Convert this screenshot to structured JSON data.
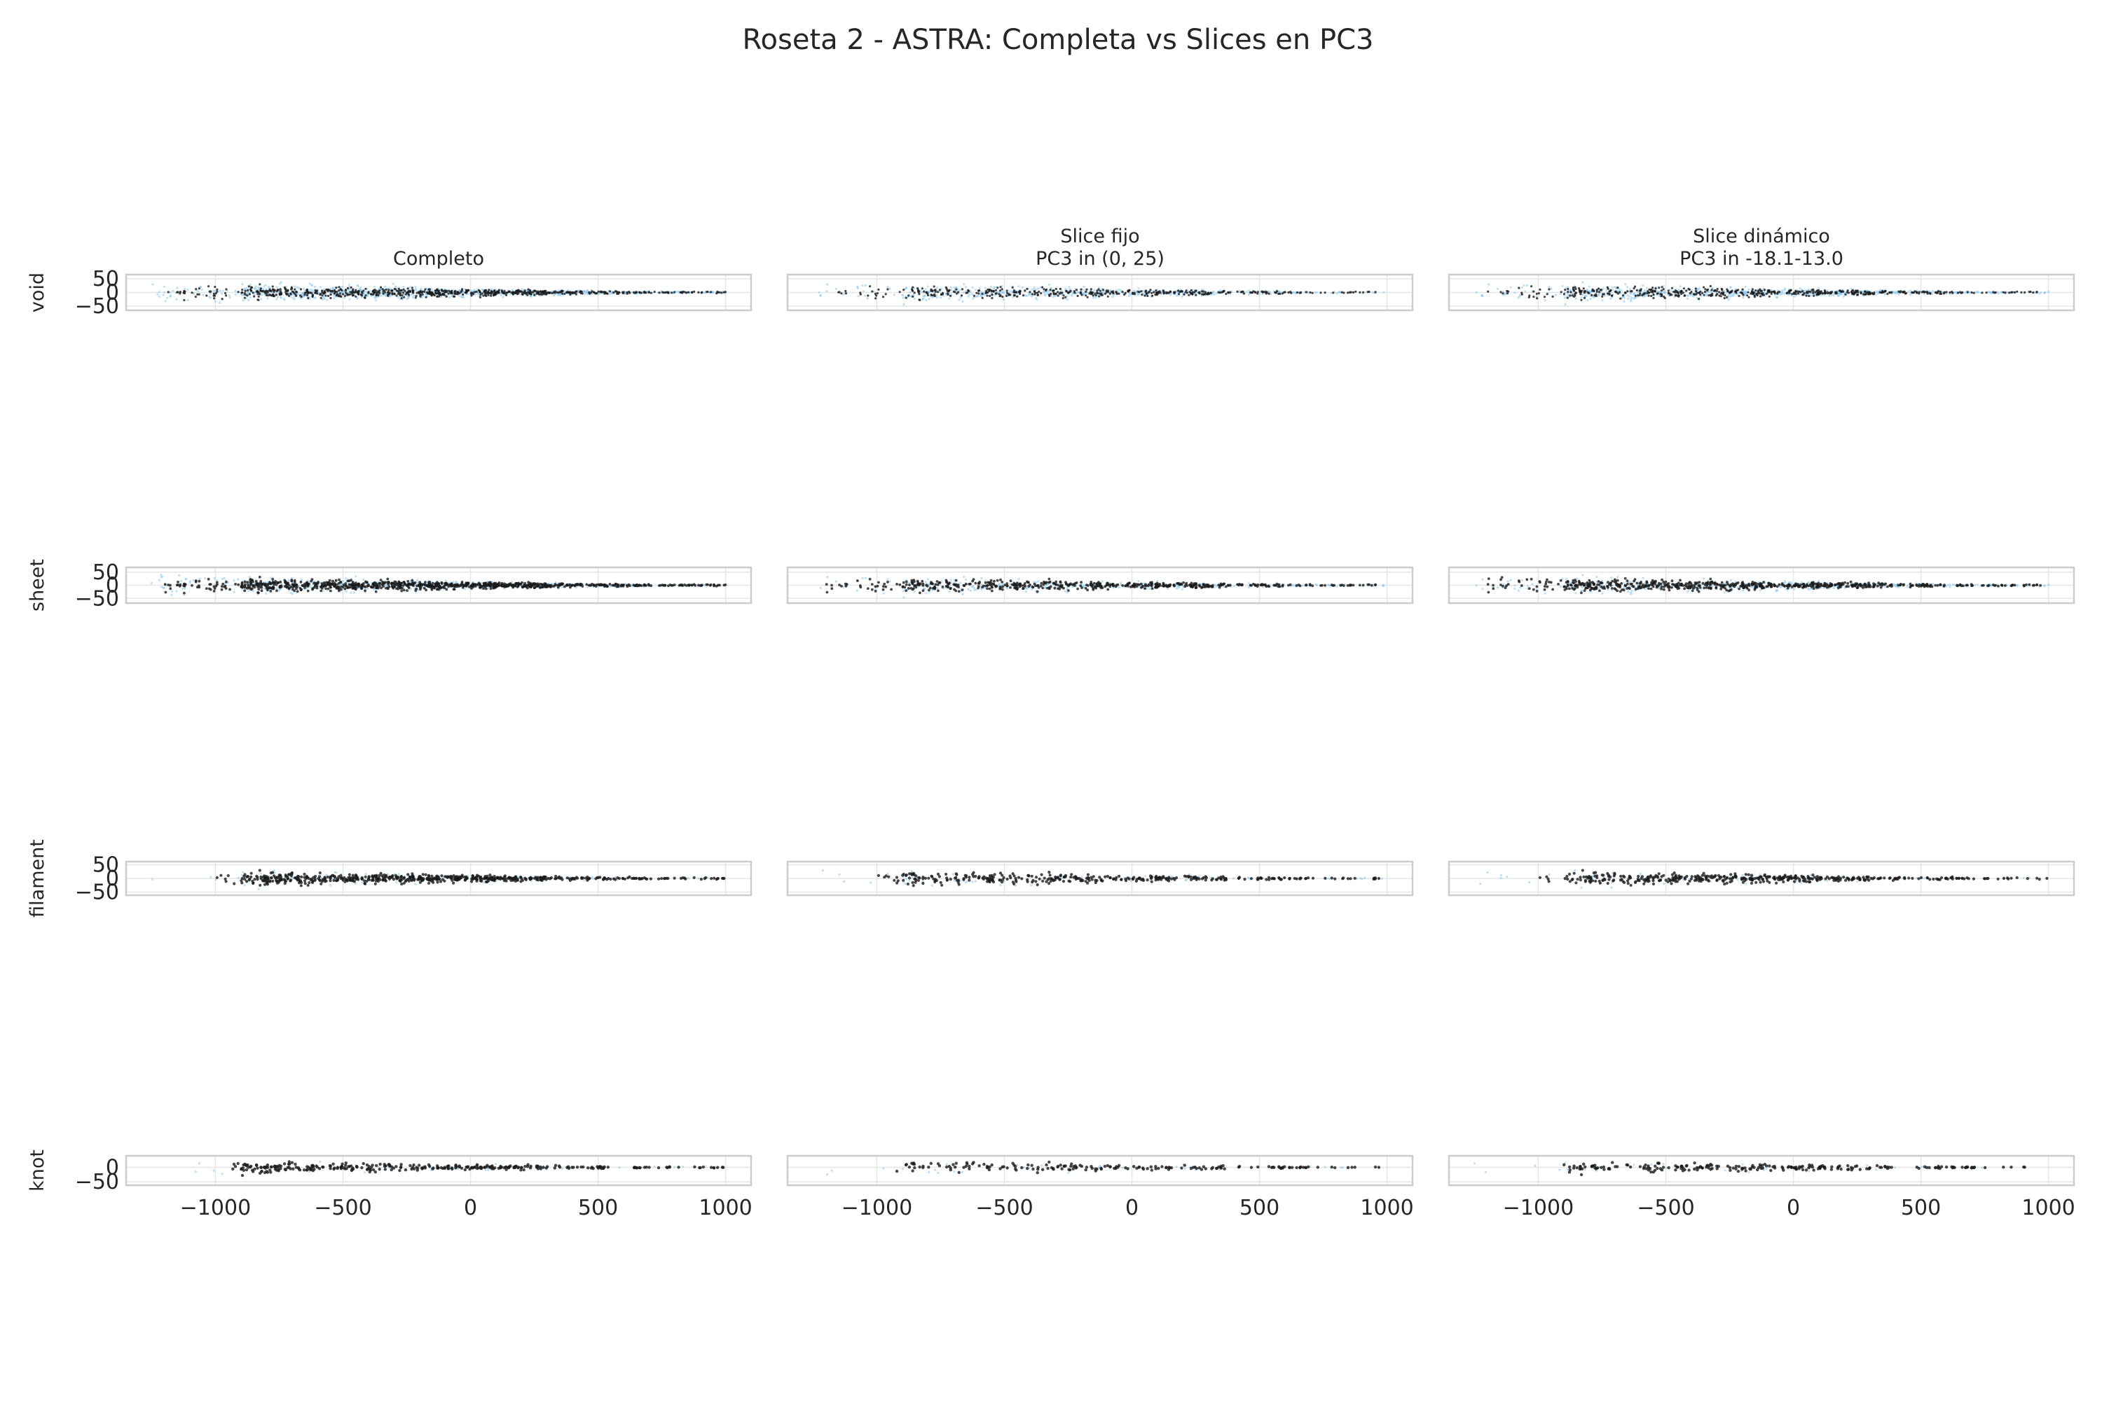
{
  "figure": {
    "title": "Roseta 2 - ASTRA: Completa vs Slices en PC3"
  },
  "colors": {
    "background_points": "#87c6ee",
    "foreground_points": "#1a1a1a",
    "axes_edge": "#cccccc",
    "grid": "#e6e6e6",
    "text": "#262626"
  },
  "columns": [
    {
      "title_lines": [
        "Completo"
      ]
    },
    {
      "title_lines": [
        "Slice fijo",
        "PC3 in (0, 25)"
      ]
    },
    {
      "title_lines": [
        "Slice dinámico",
        "PC3 in -18.1-13.0"
      ]
    }
  ],
  "rows": [
    {
      "label": "void"
    },
    {
      "label": "sheet"
    },
    {
      "label": "filament"
    },
    {
      "label": "knot"
    }
  ],
  "chart_data": {
    "type": "scatter",
    "title": "Roseta 2 - ASTRA: Completa vs Slices en PC3",
    "xlabel": "",
    "ylabel": "",
    "grid": true,
    "xlim": [
      -1350,
      1100
    ],
    "x_ticks": [
      -1000,
      -500,
      0,
      500,
      1000
    ],
    "x_tick_labels": [
      "−1000",
      "−500",
      "0",
      "500",
      "1000"
    ],
    "panels_y": [
      {
        "row": "void",
        "ylim": [
          -65,
          65
        ],
        "y_ticks": [
          50,
          0,
          -50
        ],
        "y_tick_labels": [
          "50",
          "0",
          "−50"
        ]
      },
      {
        "row": "sheet",
        "ylim": [
          -68,
          68
        ],
        "y_ticks": [
          50,
          0,
          -50
        ],
        "y_tick_labels": [
          "50",
          "0",
          "−50"
        ]
      },
      {
        "row": "filament",
        "ylim": [
          -62,
          62
        ],
        "y_ticks": [
          50,
          0,
          -50
        ],
        "y_tick_labels": [
          "50",
          "0",
          "−50"
        ]
      },
      {
        "row": "knot",
        "ylim": [
          -62,
          40
        ],
        "y_ticks": [
          0,
          -50
        ],
        "y_tick_labels": [
          "0",
          "−50"
        ]
      }
    ],
    "series": [
      {
        "role": "full environment (light blue, background)"
      },
      {
        "role": "row environment (dark, foreground)"
      }
    ]
  }
}
